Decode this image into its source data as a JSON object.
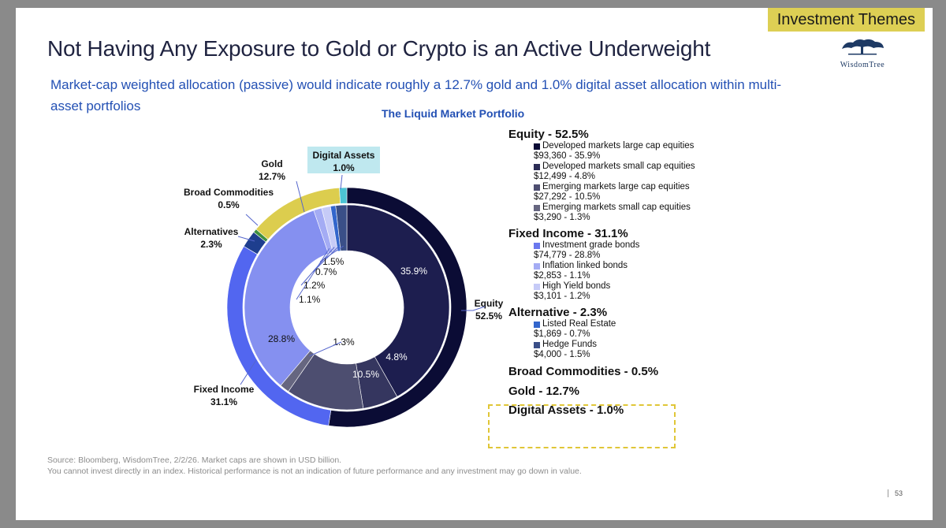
{
  "tag": "Investment Themes",
  "title": "Not Having Any Exposure to Gold or Crypto is an Active Underweight",
  "logo": {
    "text": "WisdomTree",
    "icon": "tree-icon"
  },
  "subtitle": "Market-cap weighted allocation (passive) would indicate roughly a 12.7% gold and 1.0% digital asset allocation within multi-asset portfolios",
  "source_lines": [
    "Source: Bloomberg, WisdomTree, 2/2/26. Market caps are shown in USD billion.",
    "You cannot invest directly in an index. Historical performance is not an indication of future performance and any investment may go down in value."
  ],
  "page_number": "53",
  "chart_data": {
    "type": "pie",
    "subtype": "double-donut",
    "title": "The Liquid Market Portfolio",
    "outer": [
      {
        "name": "Equity",
        "value": 52.5,
        "label": "Equity\n52.5%",
        "color": "#0b0c35"
      },
      {
        "name": "Fixed Income",
        "value": 31.1,
        "label": "Fixed Income\n31.1%",
        "color": "#5266f0"
      },
      {
        "name": "Alternatives",
        "value": 2.3,
        "label": "Alternatives\n2.3%",
        "color": "#1e3e8e"
      },
      {
        "name": "Broad Commodities",
        "value": 0.5,
        "label": "Broad Commodities\n0.5%",
        "color": "#3f8f3f"
      },
      {
        "name": "Gold",
        "value": 12.7,
        "label": "Gold\n12.7%",
        "color": "#dccd4e"
      },
      {
        "name": "Digital Assets",
        "value": 1.0,
        "label": "Digital Assets\n1.0%",
        "color": "#4cc3d4"
      }
    ],
    "inner": [
      {
        "name": "Developed markets large cap equities",
        "value": 35.9,
        "label": "35.9%",
        "color": "#1d1e4f"
      },
      {
        "name": "Developed markets small cap equities",
        "value": 4.8,
        "label": "4.8%",
        "color": "#35365f"
      },
      {
        "name": "Emerging markets large cap equities",
        "value": 10.5,
        "label": "10.5%",
        "color": "#4d4e70"
      },
      {
        "name": "Emerging markets small cap equities",
        "value": 1.3,
        "label": "1.3%",
        "color": "#666680"
      },
      {
        "name": "Investment grade bonds",
        "value": 28.8,
        "label": "28.8%",
        "color": "#8590f0"
      },
      {
        "name": "Inflation linked bonds",
        "value": 1.1,
        "label": "1.1%",
        "color": "#a4acf4"
      },
      {
        "name": "High Yield bonds",
        "value": 1.2,
        "label": "1.2%",
        "color": "#c6cbf7"
      },
      {
        "name": "Listed Real Estate",
        "value": 0.7,
        "label": "0.7%",
        "color": "#3366cc"
      },
      {
        "name": "Hedge Funds",
        "value": 1.5,
        "label": "1.5%",
        "color": "#3a4f88"
      }
    ],
    "legend": [
      {
        "heading": "Equity - 52.5%",
        "items": [
          {
            "name": "Developed markets large cap equities",
            "value": "$93,360 - 35.9%",
            "color": "#0b0c35"
          },
          {
            "name": "Developed markets small cap equities",
            "value": "$12,499 - 4.8%",
            "color": "#2b2c55"
          },
          {
            "name": "Emerging markets large cap equities",
            "value": "$27,292 - 10.5%",
            "color": "#4d4e70"
          },
          {
            "name": "Emerging markets small cap equities",
            "value": "$3,290 - 1.3%",
            "color": "#666680"
          }
        ]
      },
      {
        "heading": "Fixed Income - 31.1%",
        "items": [
          {
            "name": "Investment grade bonds",
            "value": "$74,779 - 28.8%",
            "color": "#6a78ee"
          },
          {
            "name": "Inflation linked bonds",
            "value": "$2,853 - 1.1%",
            "color": "#a4acf4"
          },
          {
            "name": "High Yield bonds",
            "value": "$3,101 - 1.2%",
            "color": "#c6cbf7"
          }
        ]
      },
      {
        "heading": "Alternative - 2.3%",
        "items": [
          {
            "name": "Listed Real Estate",
            "value": "$1,869 - 0.7%",
            "color": "#3366cc"
          },
          {
            "name": "Hedge Funds",
            "value": "$4,000 - 1.5%",
            "color": "#3a4f88"
          }
        ]
      },
      {
        "heading": "Broad Commodities - 0.5%",
        "items": []
      },
      {
        "heading": "Gold - 12.7%",
        "items": []
      },
      {
        "heading": "Digital Assets - 1.0%",
        "items": []
      }
    ]
  }
}
